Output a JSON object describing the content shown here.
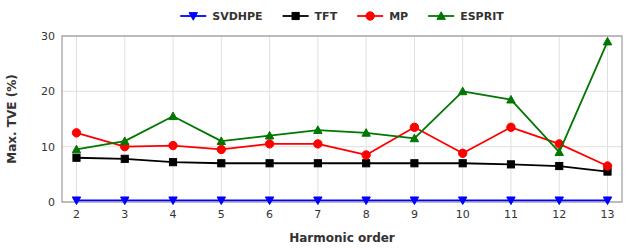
{
  "chart_data": {
    "type": "line",
    "xlabel": "Harmonic order",
    "ylabel": "Max. TVE (%)",
    "x": [
      2,
      3,
      4,
      5,
      6,
      7,
      8,
      9,
      10,
      11,
      12,
      13
    ],
    "xlim": [
      1.7,
      13.3
    ],
    "xticks": [
      2,
      3,
      4,
      5,
      6,
      7,
      8,
      9,
      10,
      11,
      12,
      13
    ],
    "ylim": [
      0,
      30
    ],
    "yticks": [
      0,
      10,
      20,
      30
    ],
    "grid": true,
    "legend": "top",
    "series": [
      {
        "name": "SVDHPE",
        "color": "#0000ff",
        "marker": "triangle-down",
        "values": [
          0.3,
          0.3,
          0.3,
          0.3,
          0.3,
          0.3,
          0.3,
          0.3,
          0.3,
          0.3,
          0.3,
          0.3
        ]
      },
      {
        "name": "TFT",
        "color": "#000000",
        "marker": "square",
        "values": [
          8.0,
          7.8,
          7.2,
          7.0,
          7.0,
          7.0,
          7.0,
          7.0,
          7.0,
          6.8,
          6.5,
          5.5
        ]
      },
      {
        "name": "MP",
        "color": "#ff0000",
        "marker": "circle",
        "values": [
          12.5,
          10.0,
          10.2,
          9.5,
          10.5,
          10.5,
          8.5,
          13.5,
          8.8,
          13.5,
          10.5,
          6.5
        ]
      },
      {
        "name": "ESPRIT",
        "color": "#007700",
        "marker": "triangle-up",
        "values": [
          9.5,
          11.0,
          15.5,
          11.0,
          12.0,
          13.0,
          12.5,
          11.5,
          20.0,
          18.5,
          9.0,
          29.0
        ]
      }
    ]
  }
}
